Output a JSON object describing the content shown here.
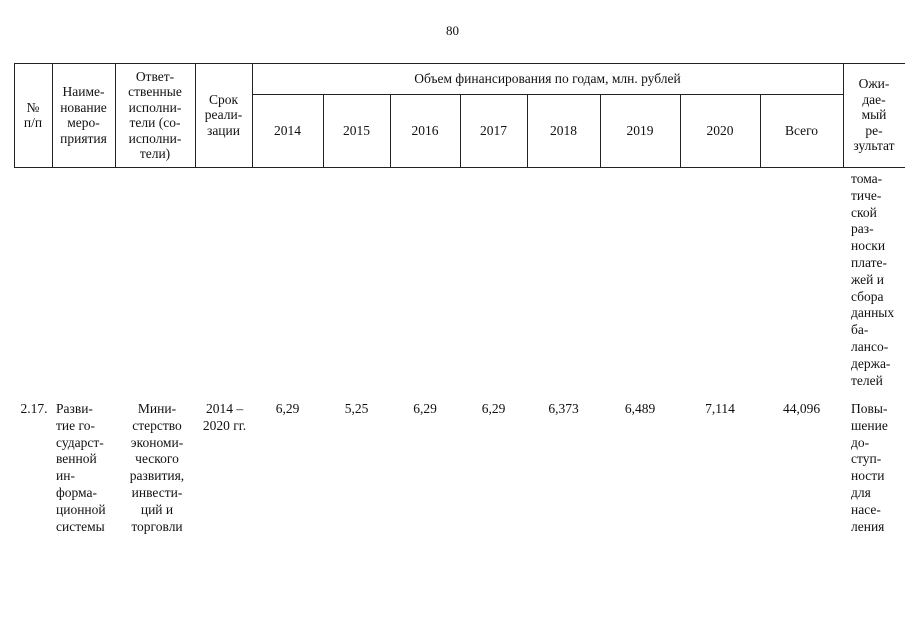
{
  "page_number": "80",
  "table": {
    "header": {
      "col_num": "№\nп/п",
      "col_name": "Наиме-\nнование\nмеро-\nприятия",
      "col_resp": "Ответ-\nственные\nисполни-\nтели (со-\nисполни-\nтели)",
      "col_term": "Срок\nреали-\nзации",
      "funding_title": "Объем финансирования по годам, млн. рублей",
      "years": [
        "2014",
        "2015",
        "2016",
        "2017",
        "2018",
        "2019",
        "2020",
        "Всего"
      ],
      "col_result": "Ожи-\nдае-\nмый\nре-\nзультат"
    },
    "continuation_result": "тома-\nтиче-\nской\nраз-\nноски\nплате-\nжей   и\nсбора\nданных\nба-\nлансо-\nдержа-\nтелей",
    "row_2_17": {
      "num": "2.17.",
      "name": "Разви-\nтие   го-\nсударст-\nвенной\nин-\nформа-\nционной\nсистемы",
      "responsible": "Мини-\nстерство\nэкономи-\nческого\nразвития,\nинвести-\nций и\nторговли",
      "term": "2014 –\n2020 гг.",
      "values": [
        "6,29",
        "5,25",
        "6,29",
        "6,29",
        "6,373",
        "6,489",
        "7,114",
        "44,096"
      ],
      "result": "Повы-\nшение\nдо-\nступ-\nности\nдля\nнасе-\nления"
    }
  }
}
